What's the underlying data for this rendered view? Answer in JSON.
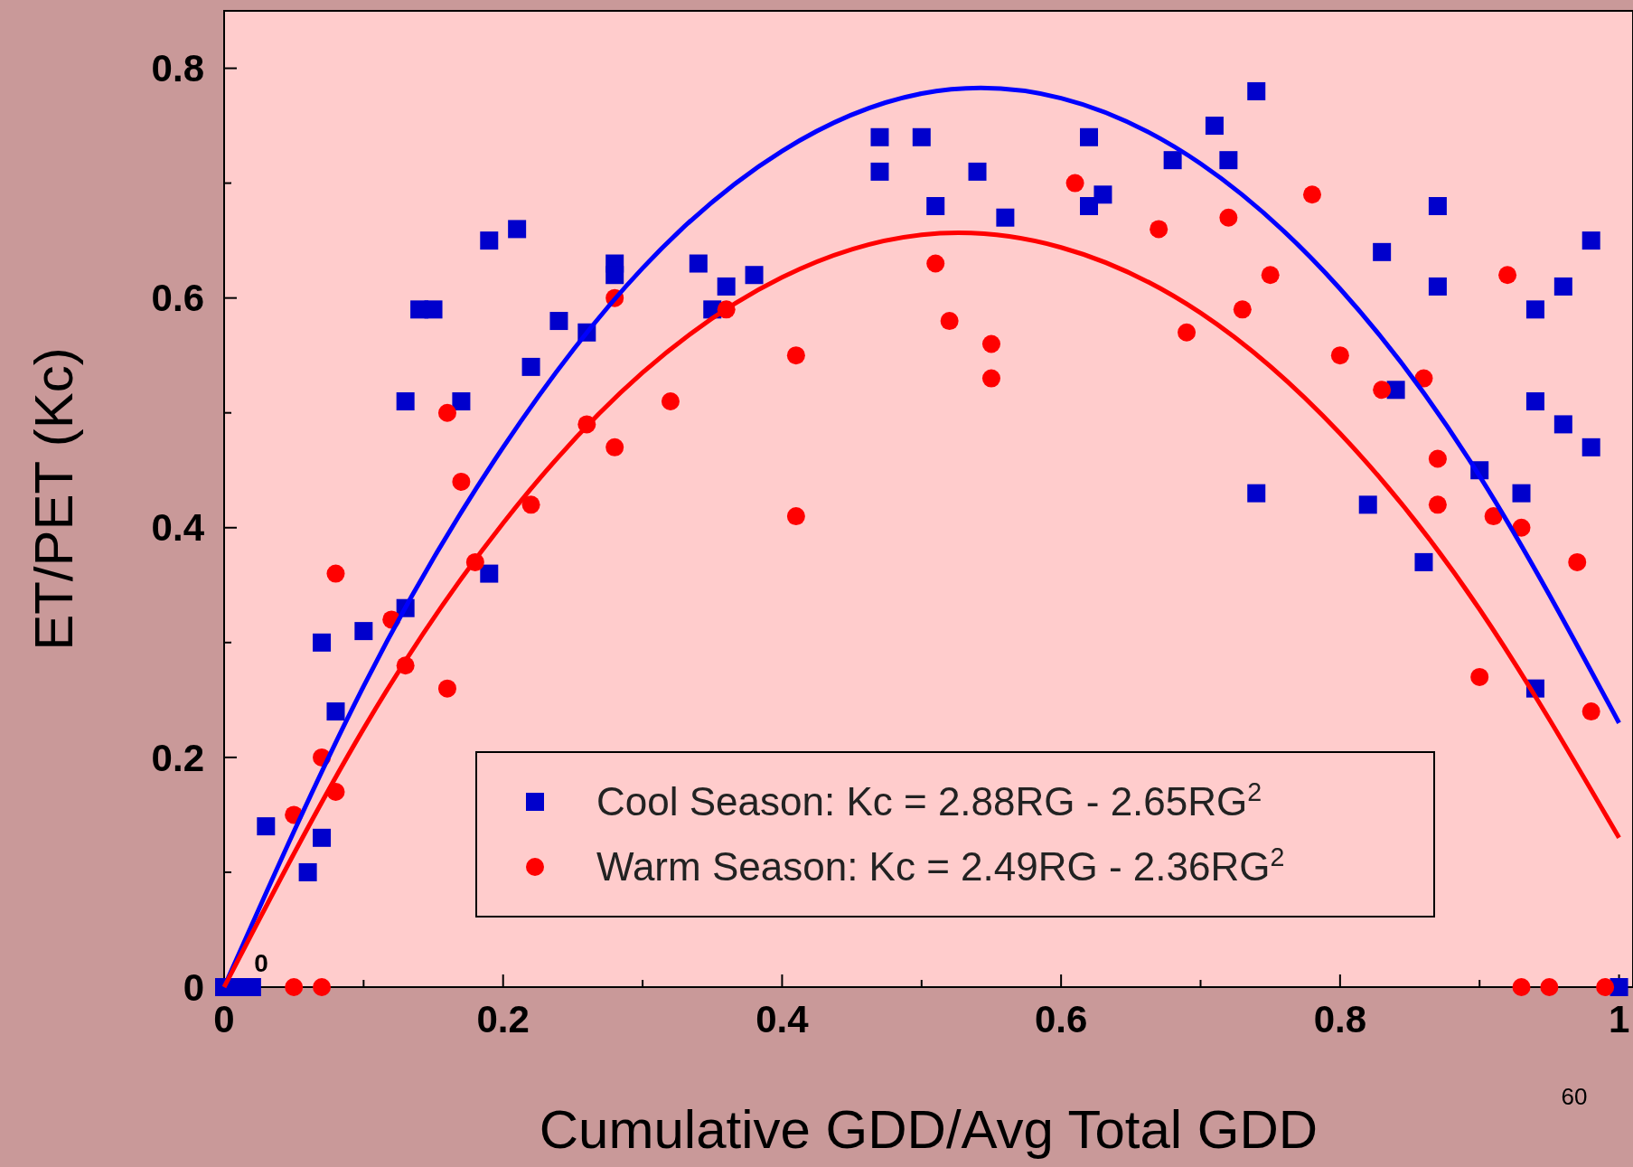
{
  "chart_data": {
    "type": "scatter",
    "xlabel": "Cumulative GDD/Avg Total GDD",
    "ylabel": "ET/PET (Kc)",
    "xlim": [
      0,
      1.01
    ],
    "ylim": [
      0,
      0.85
    ],
    "xticks": [
      0,
      {
        "value": 0.1,
        "label": null
      },
      {
        "value": 0.2,
        "label": "0.2"
      },
      {
        "value": 0.3,
        "label": null
      },
      {
        "value": 0.4,
        "label": "0.4"
      },
      {
        "value": 0.5,
        "label": null
      },
      {
        "value": 0.6,
        "label": "0.6"
      },
      {
        "value": 0.7,
        "label": null
      },
      {
        "value": 0.8,
        "label": "0.8"
      },
      {
        "value": 0.9,
        "label": null
      },
      1
    ],
    "yticks": [
      0,
      {
        "value": 0.1,
        "label": null
      },
      {
        "value": 0.2,
        "label": "0.2"
      },
      {
        "value": 0.3,
        "label": null
      },
      {
        "value": 0.4,
        "label": "0.4"
      },
      {
        "value": 0.5,
        "label": null
      },
      {
        "value": 0.6,
        "label": "0.6"
      },
      {
        "value": 0.7,
        "label": null
      },
      {
        "value": 0.8,
        "label": "0.8"
      }
    ],
    "grid": false,
    "legend": "bottom",
    "annotations": [
      "0",
      "60"
    ],
    "series": [
      {
        "name": "Cool Season: Kc = 2.88RG - 2.65RG$^{2}$",
        "color": "#0000cc",
        "marker": "square",
        "x": [
          0,
          0.01,
          0.02,
          0.03,
          0.06,
          0.07,
          0.07,
          0.08,
          0.1,
          0.13,
          0.13,
          0.14,
          0.15,
          0.17,
          0.19,
          0.19,
          0.21,
          0.22,
          0.24,
          0.26,
          0.28,
          0.28,
          0.34,
          0.35,
          0.36,
          0.38,
          0.47,
          0.47,
          0.5,
          0.51,
          0.54,
          0.56,
          0.62,
          0.62,
          0.63,
          0.68,
          0.71,
          0.72,
          0.74,
          0.74,
          0.82,
          0.83,
          0.84,
          0.86,
          0.87,
          0.87,
          0.9,
          0.93,
          0.94,
          0.94,
          0.94,
          0.96,
          0.96,
          0.98,
          0.98,
          1.0
        ],
        "values": [
          0,
          0,
          0,
          0.14,
          0.1,
          0.3,
          0.13,
          0.24,
          0.31,
          0.51,
          0.33,
          0.59,
          0.59,
          0.51,
          0.36,
          0.65,
          0.66,
          0.54,
          0.58,
          0.57,
          0.63,
          0.62,
          0.63,
          0.59,
          0.61,
          0.62,
          0.74,
          0.71,
          0.74,
          0.68,
          0.71,
          0.67,
          0.74,
          0.68,
          0.69,
          0.72,
          0.75,
          0.72,
          0.78,
          0.43,
          0.42,
          0.64,
          0.52,
          0.37,
          0.68,
          0.61,
          0.45,
          0.43,
          0.59,
          0.51,
          0.26,
          0.61,
          0.49,
          0.65,
          0.47,
          0
        ]
      },
      {
        "name": "Warm Season: Kc = 2.49RG - 2.36RG$^{2}$",
        "color": "#ff0000",
        "marker": "circle",
        "x": [
          0.05,
          0.07,
          0.05,
          0.07,
          0.08,
          0.08,
          0.12,
          0.13,
          0.16,
          0.16,
          0.17,
          0.18,
          0.22,
          0.26,
          0.28,
          0.28,
          0.32,
          0.36,
          0.41,
          0.41,
          0.51,
          0.52,
          0.55,
          0.55,
          0.61,
          0.67,
          0.69,
          0.72,
          0.73,
          0.75,
          0.78,
          0.8,
          0.83,
          0.86,
          0.87,
          0.87,
          0.9,
          0.91,
          0.92,
          0.93,
          0.93,
          0.95,
          0.97,
          0.98,
          0.99
        ],
        "values": [
          0,
          0,
          0.15,
          0.2,
          0.36,
          0.17,
          0.32,
          0.28,
          0.5,
          0.26,
          0.44,
          0.37,
          0.42,
          0.49,
          0.6,
          0.47,
          0.51,
          0.59,
          0.55,
          0.41,
          0.63,
          0.58,
          0.56,
          0.53,
          0.7,
          0.66,
          0.57,
          0.67,
          0.59,
          0.62,
          0.69,
          0.55,
          0.52,
          0.53,
          0.46,
          0.42,
          0.27,
          0.41,
          0.62,
          0.4,
          0,
          0,
          0.37,
          0.24,
          0
        ]
      },
      {
        "type": "line",
        "color": "#0000ff",
        "marker": "none",
        "x": [
          0,
          0.1,
          0.2,
          0.3,
          0.4,
          0.5,
          0.6,
          0.7,
          0.8,
          0.9,
          1.0
        ],
        "values": [
          0,
          0.262,
          0.47,
          0.626,
          0.728,
          0.778,
          0.774,
          0.717,
          0.608,
          0.445,
          0.23
        ]
      },
      {
        "type": "line",
        "color": "#ff0000",
        "marker": "none",
        "x": [
          0,
          0.1,
          0.2,
          0.3,
          0.4,
          0.5,
          0.6,
          0.7,
          0.8,
          0.9,
          1.0
        ],
        "values": [
          0,
          0.225,
          0.404,
          0.535,
          0.618,
          0.655,
          0.644,
          0.587,
          0.482,
          0.329,
          0.13
        ]
      }
    ]
  }
}
